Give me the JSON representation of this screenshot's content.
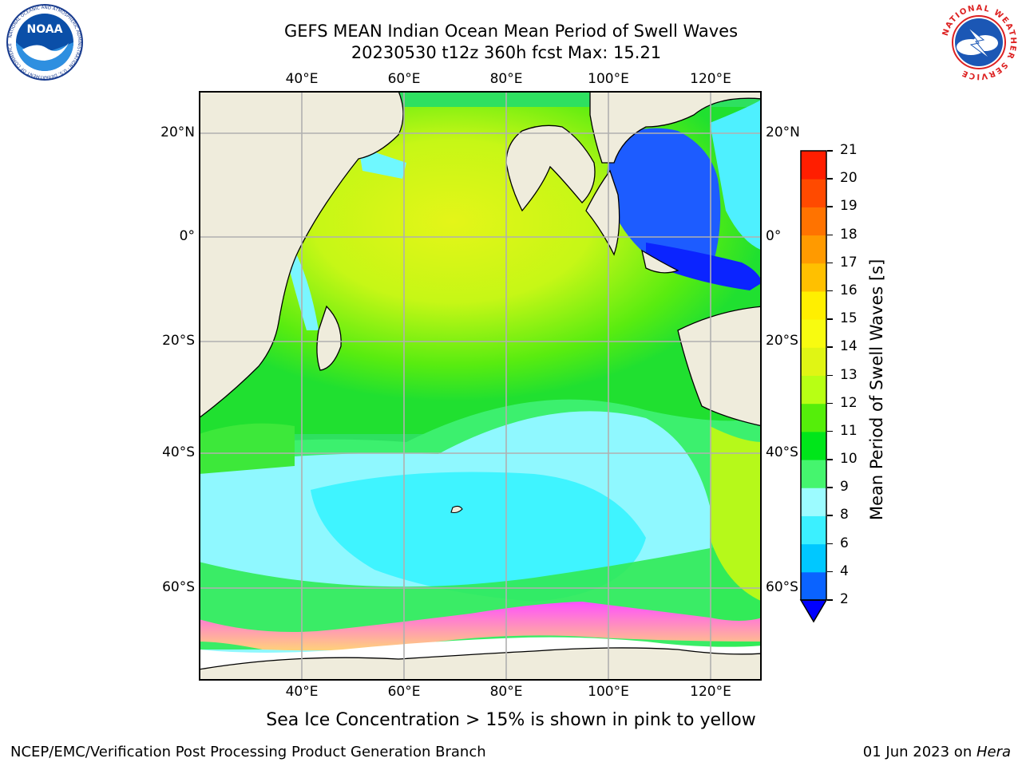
{
  "header": {
    "title_line1": "GEFS MEAN Indian Ocean Mean Period of Swell Waves",
    "title_line2": "20230530 t12z 360h fcst   Max: 15.21"
  },
  "logos": {
    "left": "NOAA",
    "left_ring": "NATIONAL OCEANIC AND ATMOSPHERIC ADMINISTRATION · U.S. DEPARTMENT OF COMMERCE",
    "right_ring": "NATIONAL WEATHER SERVICE"
  },
  "map": {
    "lon_labels": [
      "40°E",
      "60°E",
      "80°E",
      "100°E",
      "120°E"
    ],
    "lat_labels": [
      "20°N",
      "0°",
      "20°S",
      "40°S",
      "60°S"
    ],
    "colors": {
      "land": "#efecdc",
      "sea_ice_low": "#ff66ff",
      "sea_ice_high": "#ffd27a"
    },
    "note": "Sea Ice Concentration > 15% is shown in pink to yellow"
  },
  "colorbar": {
    "title": "Mean Period of Swell Waves [s]",
    "ticks": [
      "2",
      "4",
      "6",
      "8",
      "9",
      "10",
      "11",
      "12",
      "13",
      "14",
      "15",
      "16",
      "17",
      "18",
      "19",
      "20",
      "21"
    ],
    "colors": [
      "#0a63ff",
      "#00c8ff",
      "#3bf0ff",
      "#9cfbff",
      "#45f56e",
      "#00e61a",
      "#55ee0a",
      "#b8ff14",
      "#e0f514",
      "#f8fb10",
      "#ffef00",
      "#ffc000",
      "#ff9a00",
      "#ff7300",
      "#ff4a00",
      "#ff1e00"
    ],
    "under_color": "#0000ff"
  },
  "footer": {
    "left": "NCEP/EMC/Verification Post Processing Product Generation Branch",
    "right_date": "01 Jun 2023 on ",
    "right_host": "Hera"
  }
}
